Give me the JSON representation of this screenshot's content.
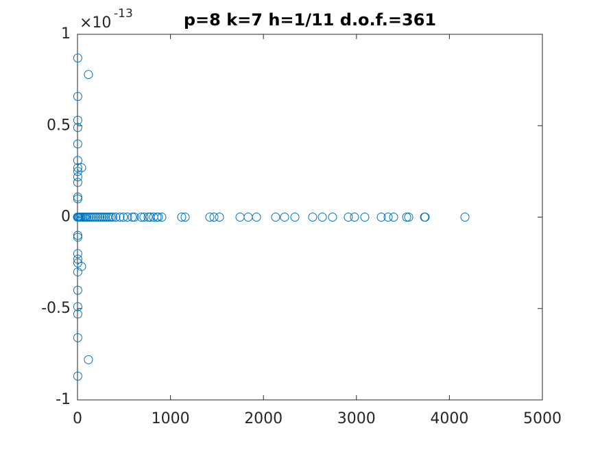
{
  "chart_data": {
    "type": "scatter",
    "title": "p=8 k=7 h=1/11 d.o.f.=361",
    "y_exponent_base": "×10",
    "y_exponent_power": "-13",
    "xlim": [
      0,
      5000
    ],
    "ylim": [
      -1,
      1
    ],
    "xticks": [
      0,
      1000,
      2000,
      3000,
      4000,
      5000
    ],
    "yticks": [
      -1,
      -0.5,
      0,
      0.5,
      1
    ],
    "grid": false,
    "series": [
      {
        "color": "#0072BD",
        "x": [
          3,
          3,
          3,
          3,
          3,
          3,
          3,
          3,
          3,
          3,
          3,
          3,
          3,
          3,
          3,
          3,
          3,
          3,
          3,
          3,
          3,
          3,
          3,
          118,
          118,
          44,
          44,
          0,
          5,
          10,
          20,
          30,
          40,
          55,
          70,
          85,
          100,
          120,
          140,
          160,
          180,
          200,
          220,
          240,
          260,
          280,
          300,
          320,
          340,
          360,
          380,
          413,
          457,
          494,
          538,
          590,
          612,
          686,
          715,
          760,
          782,
          819,
          855,
          870,
          907,
          1121,
          1158,
          1423,
          1468,
          1527,
          1748,
          1836,
          1925,
          2131,
          2227,
          2338,
          2529,
          2633,
          2743,
          2913,
          2979,
          3090,
          3267,
          3341,
          3400,
          3540,
          3562,
          3732,
          3739,
          4167
        ],
        "values": [
          0.87,
          0.66,
          0.53,
          0.49,
          0.4,
          0.31,
          0.27,
          0.25,
          0.22,
          0.19,
          0.11,
          0.1,
          -0.1,
          -0.11,
          -0.2,
          -0.23,
          -0.25,
          -0.3,
          -0.4,
          -0.49,
          -0.53,
          -0.66,
          -0.87,
          0.78,
          -0.78,
          0.27,
          -0.27,
          0,
          0,
          0,
          0,
          0,
          0,
          0,
          0,
          0,
          0,
          0,
          0,
          0,
          0,
          0,
          0,
          0,
          0,
          0,
          0,
          0,
          0,
          0,
          0,
          0,
          0,
          0,
          0,
          0,
          0,
          0,
          0,
          0,
          0,
          0,
          0,
          0,
          0,
          0,
          0,
          0,
          0,
          0,
          0,
          0,
          0,
          0,
          0,
          0,
          0,
          0,
          0,
          0,
          0,
          0,
          0,
          0,
          0,
          0,
          0,
          0,
          0,
          0
        ]
      }
    ]
  }
}
